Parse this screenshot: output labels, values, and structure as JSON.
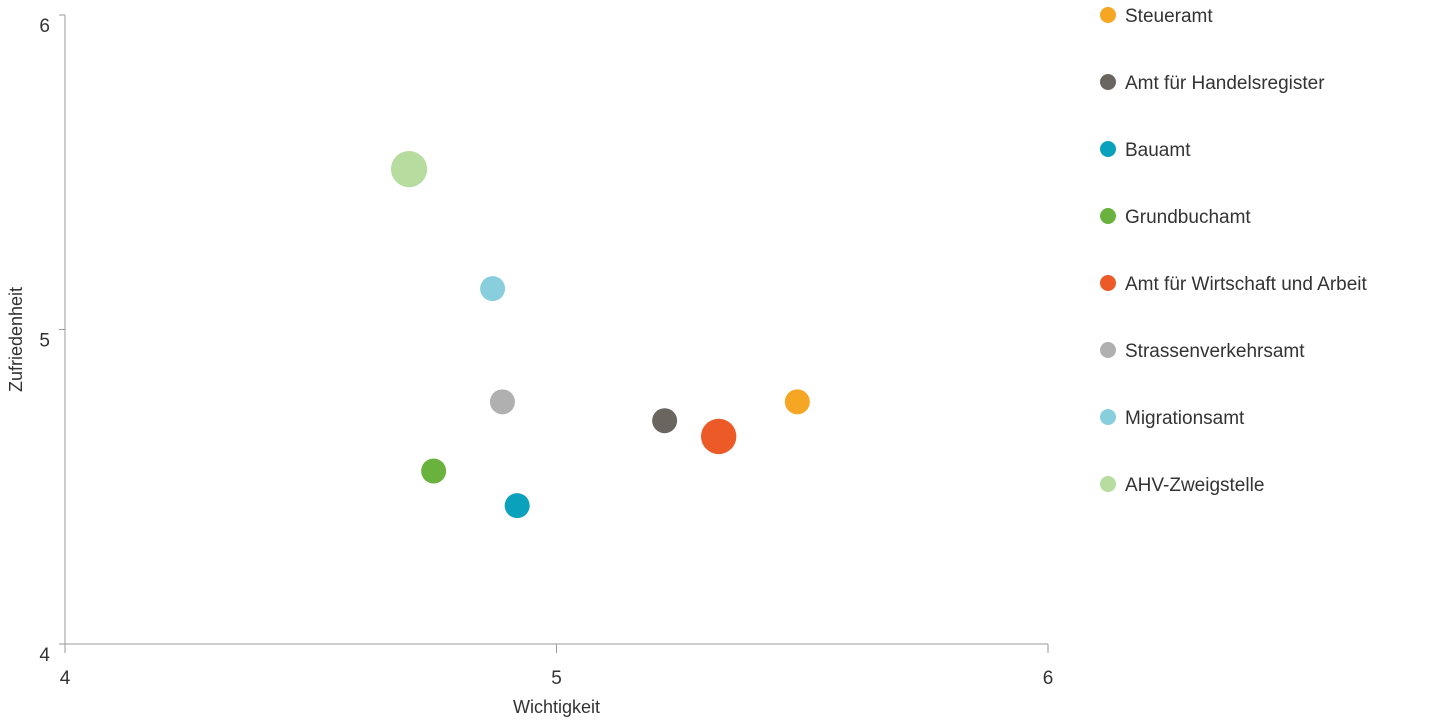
{
  "chart_data": {
    "type": "scatter",
    "title": "",
    "xlabel": "Wichtigkeit",
    "ylabel": "Zufriedenheit",
    "xlim": [
      4,
      6
    ],
    "ylim": [
      4,
      6
    ],
    "x_ticks": [
      "4",
      "5",
      "6"
    ],
    "y_ticks": [
      "4",
      "5",
      "6"
    ],
    "grid": false,
    "legend_position": "right",
    "series": [
      {
        "name": "Steueramt",
        "x": 5.49,
        "y": 4.77,
        "size": 1.0,
        "color": "#f5a623"
      },
      {
        "name": "Amt für Handelsregister",
        "x": 5.22,
        "y": 4.71,
        "size": 1.0,
        "color": "#6b6560"
      },
      {
        "name": "Bauamt",
        "x": 4.92,
        "y": 4.44,
        "size": 1.0,
        "color": "#0aa1bd"
      },
      {
        "name": "Grundbuchamt",
        "x": 4.75,
        "y": 4.55,
        "size": 1.0,
        "color": "#6ab23e"
      },
      {
        "name": "Amt für Wirtschaft und Arbeit",
        "x": 5.33,
        "y": 4.66,
        "size": 2.0,
        "color": "#ec5a27"
      },
      {
        "name": "Strassenverkehrsamt",
        "x": 4.89,
        "y": 4.77,
        "size": 1.0,
        "color": "#b0b0b0"
      },
      {
        "name": "Migrationsamt",
        "x": 4.87,
        "y": 5.13,
        "size": 1.0,
        "color": "#89cedd"
      },
      {
        "name": "AHV-Zweigstelle",
        "x": 4.7,
        "y": 5.51,
        "size": 2.1,
        "color": "#b6dca0"
      }
    ]
  }
}
